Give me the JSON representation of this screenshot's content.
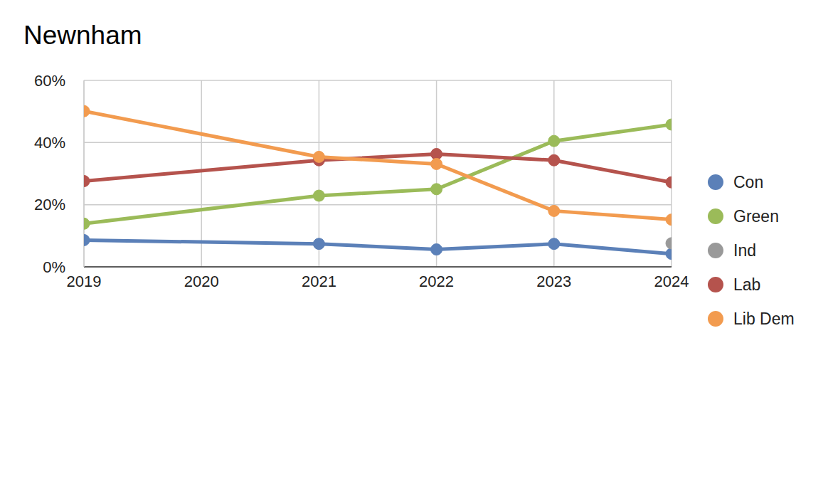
{
  "chart_data": {
    "type": "line",
    "title": "Newnham",
    "x": [
      2019,
      2021,
      2022,
      2023,
      2024
    ],
    "series": [
      {
        "name": "Con",
        "color": "#5b80b8",
        "values": [
          8.6,
          7.4,
          5.6,
          7.4,
          4.2
        ]
      },
      {
        "name": "Green",
        "color": "#9bbb59",
        "values": [
          13.9,
          22.9,
          25.0,
          40.5,
          45.8
        ]
      },
      {
        "name": "Lab",
        "color": "#b5534d",
        "values": [
          27.6,
          34.3,
          36.3,
          34.3,
          27.2
        ]
      },
      {
        "name": "Lib Dem",
        "color": "#f29b4f",
        "values": [
          50.1,
          35.4,
          33.1,
          18.0,
          15.2
        ]
      },
      {
        "name": "Ind",
        "color": "#999999",
        "values": [
          null,
          null,
          null,
          null,
          7.6
        ]
      }
    ],
    "xlim": [
      2019,
      2024
    ],
    "xticks": [
      2019,
      2020,
      2021,
      2022,
      2023,
      2024
    ],
    "ylim": [
      0,
      60
    ],
    "yticks": [
      {
        "value": 0,
        "label": "0%"
      },
      {
        "value": 20,
        "label": "20%"
      },
      {
        "value": 40,
        "label": "40%"
      },
      {
        "value": 60,
        "label": "60%"
      }
    ],
    "grid": true,
    "legend": "right",
    "marker": "circle"
  }
}
